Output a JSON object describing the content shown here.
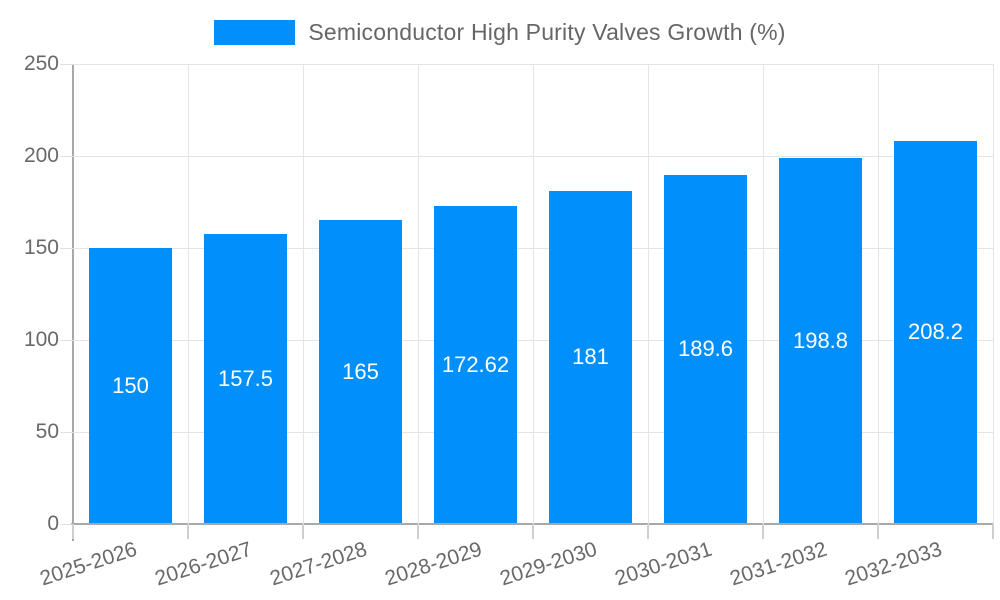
{
  "legend": {
    "label": "Semiconductor High Purity Valves Growth (%)"
  },
  "chart_data": {
    "type": "bar",
    "title": "Semiconductor High Purity Valves Growth (%)",
    "categories": [
      "2025-2026",
      "2026-2027",
      "2027-2028",
      "2028-2029",
      "2029-2030",
      "2030-2031",
      "2031-2032",
      "2032-2033"
    ],
    "values": [
      150,
      157.5,
      165,
      172.62,
      181,
      189.6,
      198.8,
      208.2
    ],
    "value_labels": [
      "150",
      "157.5",
      "165",
      "172.62",
      "181",
      "189.6",
      "198.8",
      "208.2"
    ],
    "xlabel": "",
    "ylabel": "",
    "ylim": [
      0,
      250
    ],
    "yticks": [
      0,
      50,
      100,
      150,
      200,
      250
    ],
    "grid": true,
    "legend_position": "top-center",
    "colors": {
      "bar": "#008FFB",
      "bar_label": "#FFFFFF",
      "axis_text": "#696969",
      "legend_text": "#666666",
      "gridline": "#E4E4E4",
      "axis_line": "#A8A8A8"
    }
  }
}
